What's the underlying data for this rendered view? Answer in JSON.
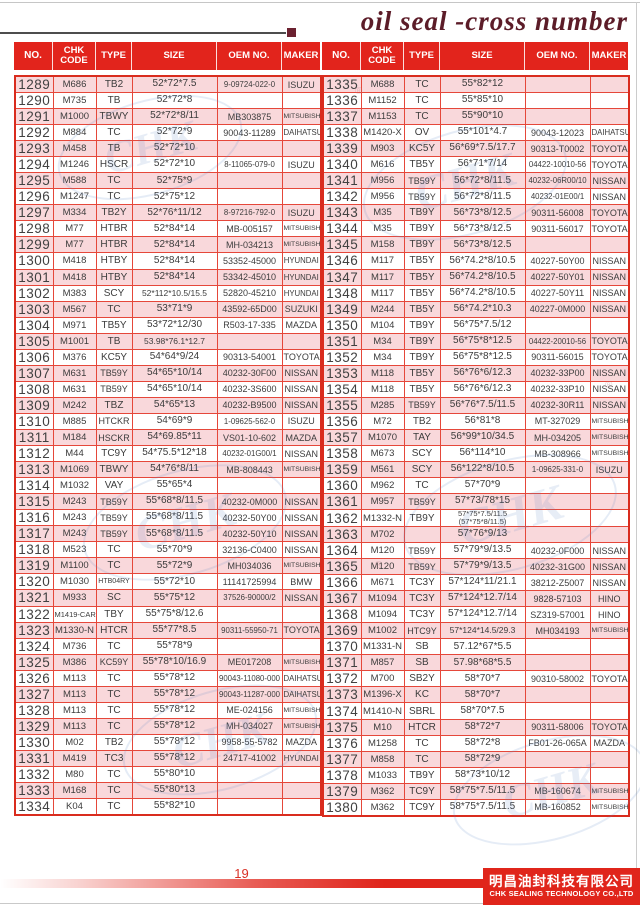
{
  "title": "oil seal -cross number",
  "page_number": "19",
  "watermark_text": "CHK",
  "reg_mark": "®",
  "footer": {
    "company_cn": "明昌油封科技有限公司",
    "company_en": "CHK SEALING TECHNOLOGY CO.,LTD"
  },
  "columns": [
    "NO.",
    "CHK CODE",
    "TYPE",
    "SIZE",
    "OEM NO.",
    "MAKER"
  ],
  "tables": [
    {
      "rows": [
        [
          "1289",
          "M686",
          "TB2",
          "52*72*7.5",
          "9-09724-022-0",
          "ISUZU"
        ],
        [
          "1290",
          "M735",
          "TB",
          "52*72*8",
          "",
          ""
        ],
        [
          "1291",
          "M1000",
          "TBWY",
          "52*72*8/11",
          "MB303875",
          "MITSUBISHI"
        ],
        [
          "1292",
          "M884",
          "TC",
          "52*72*9",
          "90043-11289",
          "DAIHATSU"
        ],
        [
          "1293",
          "M458",
          "TB",
          "52*72*10",
          "",
          ""
        ],
        [
          "1294",
          "M1246",
          "HSCR",
          "52*72*10",
          "8-11065-079-0",
          "ISUZU"
        ],
        [
          "1295",
          "M588",
          "TC",
          "52*75*9",
          "",
          ""
        ],
        [
          "1296",
          "M1247",
          "TC",
          "52*75*12",
          "",
          ""
        ],
        [
          "1297",
          "M334",
          "TB2Y",
          "52*76*11/12",
          "8-97216-792-0",
          "ISUZU"
        ],
        [
          "1298",
          "M77",
          "HTBR",
          "52*84*14",
          "MB-005157",
          "MITSUBISHI"
        ],
        [
          "1299",
          "M77",
          "HTBR",
          "52*84*14",
          "MH-034213",
          "MITSUBISHI"
        ],
        [
          "1300",
          "M418",
          "HTBY",
          "52*84*14",
          "53352-45000",
          "HYUNDAI"
        ],
        [
          "1301",
          "M418",
          "HTBY",
          "52*84*14",
          "53342-45010",
          "HYUNDAI"
        ],
        [
          "1302",
          "M383",
          "SCY",
          "52*112*10.5/15.5",
          "52820-45210",
          "HYUNDAI"
        ],
        [
          "1303",
          "M567",
          "TC",
          "53*71*9",
          "43592-65D00",
          "SUZUKI"
        ],
        [
          "1304",
          "M971",
          "TB5Y",
          "53*72*12/30",
          "R503-17-335",
          "MAZDA"
        ],
        [
          "1305",
          "M1001",
          "TB",
          "53.98*76.1*12.7",
          "",
          ""
        ],
        [
          "1306",
          "M376",
          "KC5Y",
          "54*64*9/24",
          "90313-54001",
          "TOYOTA"
        ],
        [
          "1307",
          "M631",
          "TB59Y",
          "54*65*10/14",
          "40232-30F00",
          "NISSAN"
        ],
        [
          "1308",
          "M631",
          "TB59Y",
          "54*65*10/14",
          "40232-3S600",
          "NISSAN"
        ],
        [
          "1309",
          "M242",
          "TBZ",
          "54*65*13",
          "40232-B9500",
          "NISSAN"
        ],
        [
          "1310",
          "M885",
          "HTCKR",
          "54*69*9",
          "1-09625-562-0",
          "ISUZU"
        ],
        [
          "1311",
          "M184",
          "HSCKR",
          "54*69.85*11",
          "VS01-10-602",
          "MAZDA"
        ],
        [
          "1312",
          "M44",
          "TC9Y",
          "54*75.5*12*18",
          "40232-01G00/1",
          "NISSAN"
        ],
        [
          "1313",
          "M1069",
          "TBWY",
          "54*76*8/11",
          "MB-808443",
          "MITSUBISHI"
        ],
        [
          "1314",
          "M1032",
          "VAY",
          "55*65*4",
          "",
          ""
        ],
        [
          "1315",
          "M243",
          "TB59Y",
          "55*68*8/11.5",
          "40232-0M000",
          "NISSAN"
        ],
        [
          "1316",
          "M243",
          "TB59Y",
          "55*68*8/11.5",
          "40232-50Y00",
          "NISSAN"
        ],
        [
          "1317",
          "M243",
          "TB59Y",
          "55*68*8/11.5",
          "40232-50Y10",
          "NISSAN"
        ],
        [
          "1318",
          "M523",
          "TC",
          "55*70*9",
          "32136-C0400",
          "NISSAN"
        ],
        [
          "1319",
          "M1100",
          "TC",
          "55*72*9",
          "MH034036",
          "MITSUBISHI"
        ],
        [
          "1320",
          "M1030",
          "HTB04RY",
          "55*72*10",
          "11141725994",
          "BMW"
        ],
        [
          "1321",
          "M933",
          "SC",
          "55*75*12",
          "37526-90000/2",
          "NISSAN"
        ],
        [
          "1322",
          "M1419-CAR",
          "TBY",
          "55*75*8/12.6",
          "",
          ""
        ],
        [
          "1323",
          "M1330-N",
          "HTCR",
          "55*77*8.5",
          "90311-55950-71",
          "TOYOTA"
        ],
        [
          "1324",
          "M736",
          "TC",
          "55*78*9",
          "",
          ""
        ],
        [
          "1325",
          "M386",
          "KC59Y",
          "55*78*10/16.9",
          "ME017208",
          "MITSUBISHI"
        ],
        [
          "1326",
          "M113",
          "TC",
          "55*78*12",
          "90043-11080-000",
          "DAIHATSU"
        ],
        [
          "1327",
          "M113",
          "TC",
          "55*78*12",
          "90043-11287-000",
          "DAIHATSU"
        ],
        [
          "1328",
          "M113",
          "TC",
          "55*78*12",
          "ME-024156",
          "MITSUBISHI"
        ],
        [
          "1329",
          "M113",
          "TC",
          "55*78*12",
          "MH-034027",
          "MITSUBISHI"
        ],
        [
          "1330",
          "M02",
          "TB2",
          "55*78*12",
          "9958-55-5782",
          "MAZDA"
        ],
        [
          "1331",
          "M419",
          "TC3",
          "55*78*12",
          "24717-41002",
          "HYUNDAI"
        ],
        [
          "1332",
          "M80",
          "TC",
          "55*80*10",
          "",
          ""
        ],
        [
          "1333",
          "M168",
          "TC",
          "55*80*13",
          "",
          ""
        ],
        [
          "1334",
          "K04",
          "TC",
          "55*82*10",
          "",
          ""
        ]
      ]
    },
    {
      "rows": [
        [
          "1335",
          "M688",
          "TC",
          "55*82*12",
          "",
          ""
        ],
        [
          "1336",
          "M1152",
          "TC",
          "55*85*10",
          "",
          ""
        ],
        [
          "1337",
          "M1153",
          "TC",
          "55*90*10",
          "",
          ""
        ],
        [
          "1338",
          "M1420-X",
          "OV",
          "55*101*4.7",
          "90043-12023",
          "DAIHATSU"
        ],
        [
          "1339",
          "M903",
          "KC5Y",
          "56*69*7.5/17.7",
          "90313-T0002",
          "TOYOTA"
        ],
        [
          "1340",
          "M616",
          "TB5Y",
          "56*71*7/14",
          "04422-10010-56",
          "TOYOTA"
        ],
        [
          "1341",
          "M956",
          "TB59Y",
          "56*72*8/11.5",
          "40232-06R00/10",
          "NISSAN"
        ],
        [
          "1342",
          "M956",
          "TB59Y",
          "56*72*8/11.5",
          "40232-01E00/1",
          "NISSAN"
        ],
        [
          "1343",
          "M35",
          "TB9Y",
          "56*73*8/12.5",
          "90311-56008",
          "TOYOTA"
        ],
        [
          "1344",
          "M35",
          "TB9Y",
          "56*73*8/12.5",
          "90311-56017",
          "TOYOTA"
        ],
        [
          "1345",
          "M158",
          "TB9Y",
          "56*73*8/12.5",
          "",
          ""
        ],
        [
          "1346",
          "M117",
          "TB5Y",
          "56*74.2*8/10.5",
          "40227-50Y00",
          "NISSAN"
        ],
        [
          "1347",
          "M117",
          "TB5Y",
          "56*74.2*8/10.5",
          "40227-50Y01",
          "NISSAN"
        ],
        [
          "1348",
          "M117",
          "TB5Y",
          "56*74.2*8/10.5",
          "40227-50Y11",
          "NISSAN"
        ],
        [
          "1349",
          "M244",
          "TB5Y",
          "56*74.2*10.3",
          "40227-0M000",
          "NISSAN"
        ],
        [
          "1350",
          "M104",
          "TB9Y",
          "56*75*7.5/12",
          "",
          ""
        ],
        [
          "1351",
          "M34",
          "TB9Y",
          "56*75*8*12.5",
          "04422-20010-56",
          "TOYOTA"
        ],
        [
          "1352",
          "M34",
          "TB9Y",
          "56*75*8*12.5",
          "90311-56015",
          "TOYOTA"
        ],
        [
          "1353",
          "M118",
          "TB5Y",
          "56*76*6/12.3",
          "40232-33P00",
          "NISSAN"
        ],
        [
          "1354",
          "M118",
          "TB5Y",
          "56*76*6/12.3",
          "40232-33P10",
          "NISSAN"
        ],
        [
          "1355",
          "M285",
          "TB59Y",
          "56*76*7.5/11.5",
          "40232-30R11",
          "NISSAN"
        ],
        [
          "1356",
          "M72",
          "TB2",
          "56*81*8",
          "MT-327029",
          "MITSUBISHI"
        ],
        [
          "1357",
          "M1070",
          "TAY",
          "56*99*10/34.5",
          "MH-034205",
          "MITSUBISHI"
        ],
        [
          "1358",
          "M673",
          "SCY",
          "56*114*10",
          "MB-308966",
          "MITSUBISHI"
        ],
        [
          "1359",
          "M561",
          "SCY",
          "56*122*8/10.5",
          "1-09625-331-0",
          "ISUZU"
        ],
        [
          "1360",
          "M962",
          "TC",
          "57*70*9",
          "",
          ""
        ],
        [
          "1361",
          "M957",
          "TB59Y",
          "57*73/78*15",
          "",
          ""
        ],
        [
          "1362",
          "M1332-N",
          "TB9Y",
          "57*75*7.5/11.5\n(57*75*8/11.5)",
          "",
          ""
        ],
        [
          "1363",
          "M702",
          "",
          "57*76*9/13",
          "",
          ""
        ],
        [
          "1364",
          "M120",
          "TB59Y",
          "57*79*9/13.5",
          "40232-0F000",
          "NISSAN"
        ],
        [
          "1365",
          "M120",
          "TB59Y",
          "57*79*9/13.5",
          "40232-31G00",
          "NISSAN"
        ],
        [
          "1366",
          "M671",
          "TC3Y",
          "57*124*11/21.1",
          "38212-Z5007",
          "NISSAN"
        ],
        [
          "1367",
          "M1094",
          "TC3Y",
          "57*124*12.7/14",
          "9828-57103",
          "HINO"
        ],
        [
          "1368",
          "M1094",
          "TC3Y",
          "57*124*12.7/14",
          "SZ319-57001",
          "HINO"
        ],
        [
          "1369",
          "M1002",
          "HTC9Y",
          "57*124*14.5/29.3",
          "MH034193",
          "MITSUBISHI"
        ],
        [
          "1370",
          "M1331-N",
          "SB",
          "57.12*67*5.5",
          "",
          ""
        ],
        [
          "1371",
          "M857",
          "SB",
          "57.98*68*5.5",
          "",
          ""
        ],
        [
          "1372",
          "M700",
          "SB2Y",
          "58*70*7",
          "90310-58002",
          "TOYOTA"
        ],
        [
          "1373",
          "M1396-X",
          "KC",
          "58*70*7",
          "",
          ""
        ],
        [
          "1374",
          "M1410-N",
          "SBRL",
          "58*70*7.5",
          "",
          ""
        ],
        [
          "1375",
          "M10",
          "HTCR",
          "58*72*7",
          "90311-58006",
          "TOYOTA"
        ],
        [
          "1376",
          "M1258",
          "TC",
          "58*72*8",
          "FB01-26-065A",
          "MAZDA"
        ],
        [
          "1377",
          "M858",
          "TC",
          "58*72*9",
          "",
          ""
        ],
        [
          "1378",
          "M1033",
          "TB9Y",
          "58*73*10/12",
          "",
          ""
        ],
        [
          "1379",
          "M362",
          "TC9Y",
          "58*75*7.5/11.5",
          "MB-160674",
          "MITSUBISHI"
        ],
        [
          "1380",
          "M362",
          "TC9Y",
          "58*75*7.5/11.5",
          "MB-160852",
          "MITSUBISHI"
        ]
      ]
    }
  ]
}
